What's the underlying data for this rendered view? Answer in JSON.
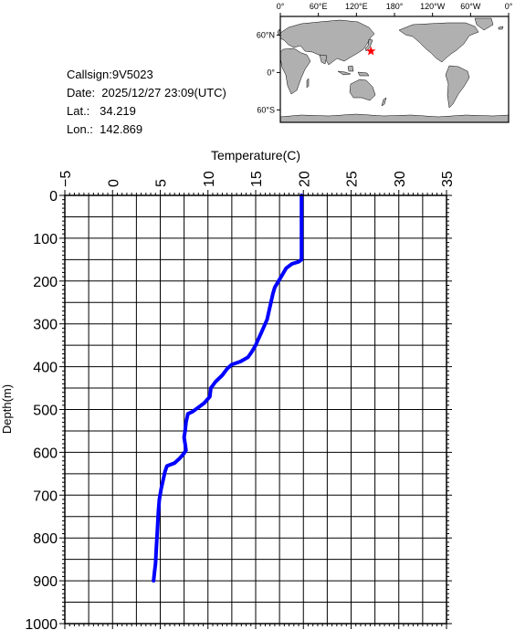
{
  "info": {
    "callsign": "Callsign:9V5023",
    "date": "Date:  2025/12/27 23:09(UTC)",
    "lat": "Lat.:   34.219",
    "lon": "Lon.:  142.869"
  },
  "map": {
    "lon_labels": [
      "0°",
      "60°E",
      "120°E",
      "180°",
      "120°W",
      "60°W",
      "0°"
    ],
    "lat_labels": [
      "60°N",
      "0°",
      "60°S"
    ],
    "ocean_color": "#ffffff",
    "land_color": "#b0b0b0",
    "marker": {
      "lat": 34.219,
      "lon": 142.869,
      "color": "#ff0000",
      "symbol": "star"
    }
  },
  "chart_data": {
    "type": "line",
    "xlabel": "Temperature(C)",
    "ylabel": "Depth(m)",
    "xlim": [
      -5,
      35
    ],
    "ylim": [
      0,
      1000
    ],
    "y_inverted": true,
    "x_ticks": [
      "-5",
      "0",
      "5",
      "10",
      "15",
      "20",
      "25",
      "30",
      "35"
    ],
    "y_ticks": [
      "0",
      "100",
      "200",
      "300",
      "400",
      "500",
      "600",
      "700",
      "800",
      "900",
      "1000"
    ],
    "grid": true,
    "line_color": "#0000ff",
    "series": [
      {
        "points": [
          [
            19.8,
            0
          ],
          [
            19.8,
            100
          ],
          [
            19.8,
            150
          ],
          [
            19.5,
            155
          ],
          [
            18.8,
            160
          ],
          [
            18.2,
            170
          ],
          [
            17.8,
            185
          ],
          [
            17.4,
            200
          ],
          [
            17.0,
            215
          ],
          [
            16.8,
            230
          ],
          [
            16.6,
            250
          ],
          [
            16.4,
            270
          ],
          [
            16.2,
            290
          ],
          [
            15.9,
            305
          ],
          [
            15.6,
            320
          ],
          [
            15.3,
            335
          ],
          [
            15.0,
            350
          ],
          [
            14.6,
            365
          ],
          [
            14.2,
            378
          ],
          [
            13.4,
            388
          ],
          [
            12.5,
            395
          ],
          [
            12.0,
            405
          ],
          [
            11.5,
            420
          ],
          [
            10.8,
            435
          ],
          [
            10.3,
            450
          ],
          [
            10.2,
            470
          ],
          [
            9.6,
            485
          ],
          [
            9.0,
            495
          ],
          [
            8.4,
            505
          ],
          [
            7.9,
            510
          ],
          [
            7.7,
            530
          ],
          [
            7.6,
            550
          ],
          [
            7.5,
            565
          ],
          [
            7.6,
            580
          ],
          [
            7.7,
            595
          ],
          [
            7.4,
            605
          ],
          [
            7.0,
            615
          ],
          [
            6.5,
            625
          ],
          [
            5.7,
            632
          ],
          [
            5.5,
            645
          ],
          [
            5.3,
            665
          ],
          [
            5.1,
            685
          ],
          [
            4.9,
            710
          ],
          [
            4.8,
            740
          ],
          [
            4.7,
            780
          ],
          [
            4.6,
            820
          ],
          [
            4.5,
            860
          ],
          [
            4.4,
            880
          ],
          [
            4.3,
            900
          ]
        ]
      }
    ]
  }
}
